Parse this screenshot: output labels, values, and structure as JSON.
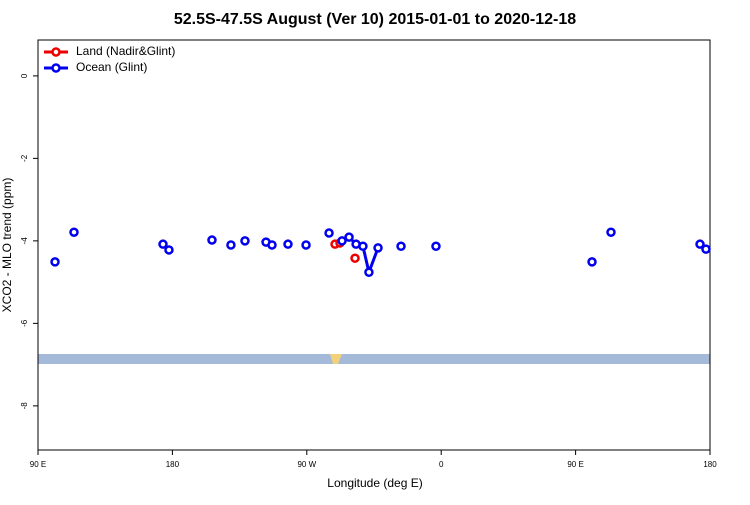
{
  "chart_data": {
    "type": "line",
    "title": "52.5S-47.5S August (Ver 10)   2015-01-01 to 2020-12-18",
    "xlabel": "Longitude (deg E)",
    "ylabel": "XCO2 - MLO trend (ppm)",
    "xlim": [
      90,
      540
    ],
    "xticks": [
      {
        "value": 90,
        "label": "90 E"
      },
      180,
      {
        "value": 270,
        "label": "90 W"
      },
      {
        "value": 360,
        "label": "0"
      },
      {
        "value": 450,
        "label": "90 E"
      },
      {
        "value": 540,
        "label": "180"
      }
    ],
    "ylim": [
      -9.07,
      0.87
    ],
    "yticks": [
      0,
      -2,
      -4,
      -6,
      -8
    ],
    "legend": "top-left",
    "series": [
      {
        "name": "Land (Nadir&Glint)",
        "color": "#ee0000",
        "x": [
          288.9,
          292.2,
          null,
          302.3
        ],
        "values": [
          -4.08,
          -4.05,
          null,
          -4.42
        ]
      },
      {
        "name": "Ocean (Glint)",
        "color": "#0000ee",
        "x": [
          101.4,
          null,
          114.1,
          null,
          173.7,
          null,
          177.7,
          null,
          206.5,
          null,
          219.2,
          null,
          228.6,
          null,
          242.7,
          null,
          246.7,
          null,
          257.4,
          null,
          269.5,
          null,
          284.9,
          null,
          293.6,
          298.3,
          303.0,
          307.6,
          311.6,
          317.7,
          null,
          333.1,
          null,
          356.5,
          null,
          461.0,
          null,
          473.7,
          null,
          533.3,
          null,
          537.3
        ],
        "values": [
          -4.51,
          null,
          -3.79,
          null,
          -4.08,
          null,
          -4.22,
          null,
          -3.98,
          null,
          -4.1,
          null,
          -4.0,
          null,
          -4.03,
          null,
          -4.1,
          null,
          -4.08,
          null,
          -4.1,
          null,
          -3.81,
          null,
          -4.0,
          -3.91,
          -4.08,
          -4.13,
          -4.76,
          -4.17,
          null,
          -4.13,
          null,
          -4.13,
          null,
          -4.51,
          null,
          -3.79,
          null,
          -4.08,
          null,
          -4.2
        ]
      }
    ]
  }
}
